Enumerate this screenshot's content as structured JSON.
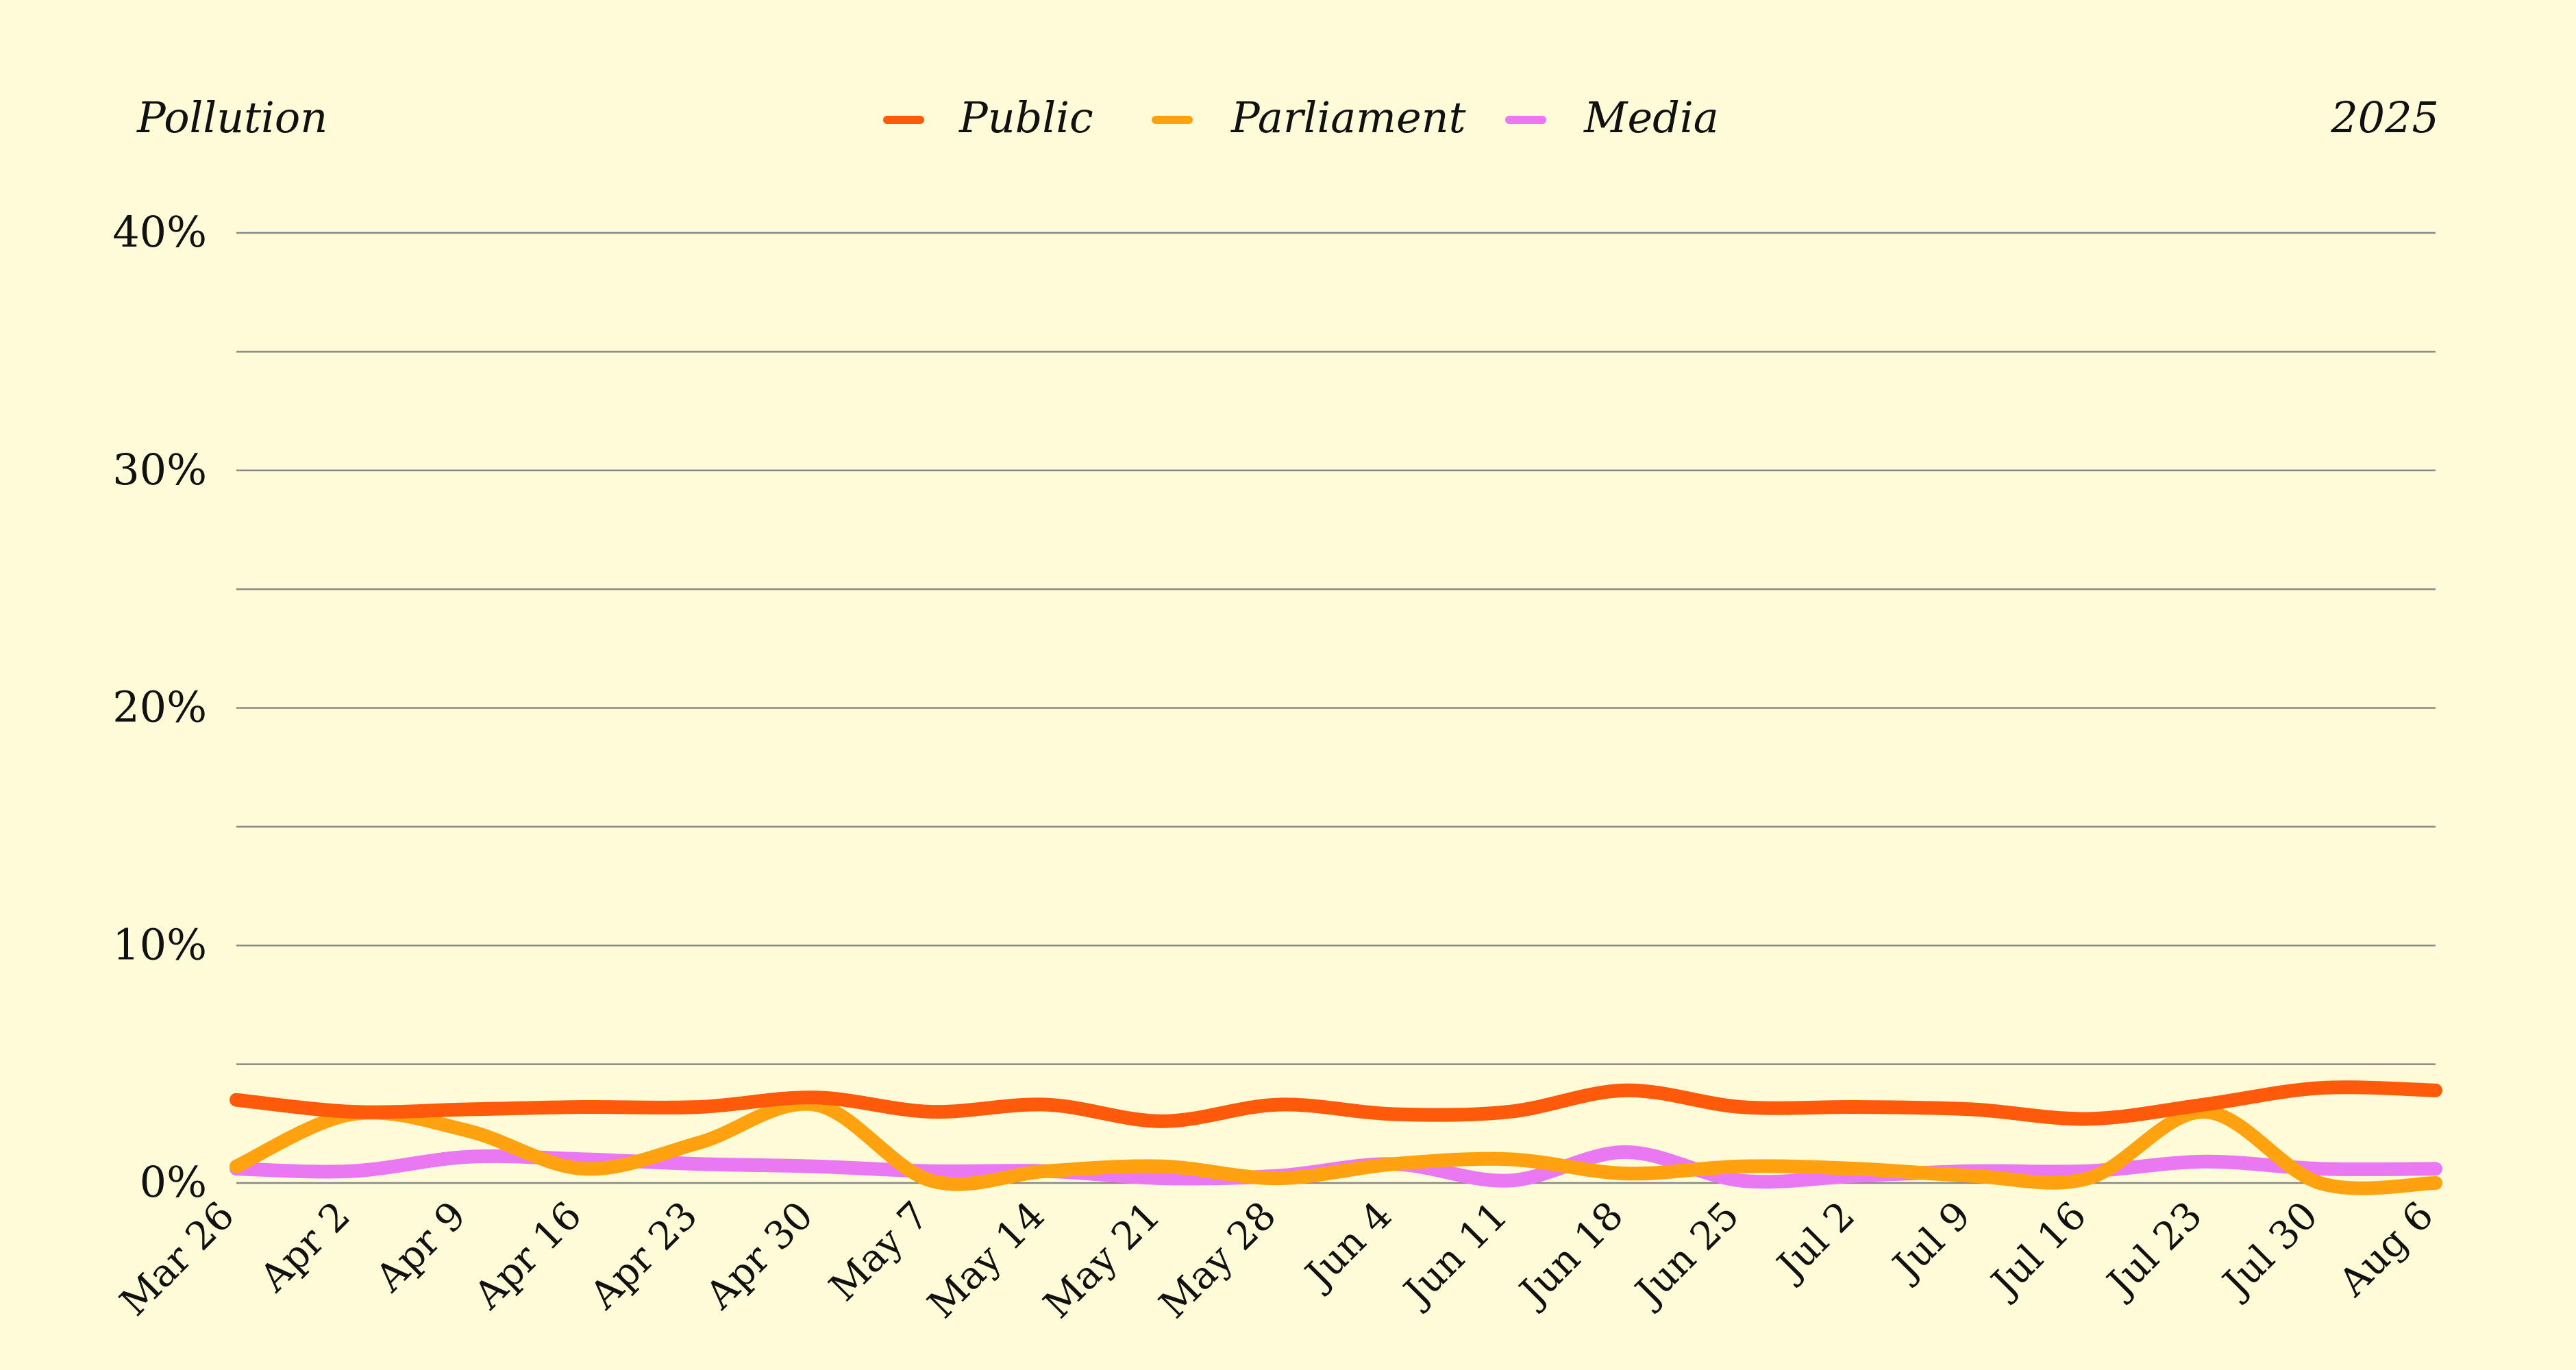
{
  "chart_data": {
    "type": "line",
    "title": "Pollution",
    "year_label": "2025",
    "y_ticks": [
      "0%",
      "10%",
      "20%",
      "30%",
      "40%"
    ],
    "ylim": [
      0,
      40
    ],
    "y_gridlines": [
      0,
      5,
      10,
      15,
      20,
      25,
      30,
      35,
      40
    ],
    "categories": [
      "Mar 26",
      "Apr 2",
      "Apr 9",
      "Apr 16",
      "Apr 23",
      "Apr 30",
      "May 7",
      "May 14",
      "May 21",
      "May 28",
      "Jun 4",
      "Jun 11",
      "Jun 18",
      "Jun 25",
      "Jul 2",
      "Jul 9",
      "Jul 16",
      "Jul 23",
      "Jul 30",
      "Aug 6"
    ],
    "legend_position": "top-center",
    "grid": true,
    "series": [
      {
        "name": "Public",
        "color": "#ff5a0a",
        "values": [
          3.5,
          3.0,
          3.1,
          3.2,
          3.2,
          3.6,
          3.0,
          3.3,
          2.6,
          3.3,
          2.9,
          3.0,
          3.9,
          3.2,
          3.2,
          3.1,
          2.7,
          3.3,
          4.0,
          3.9
        ]
      },
      {
        "name": "Parliament",
        "color": "#ffa20f",
        "values": [
          0.7,
          2.9,
          2.2,
          0.6,
          1.7,
          3.3,
          0.1,
          0.5,
          0.7,
          0.2,
          0.8,
          1.0,
          0.4,
          0.7,
          0.6,
          0.3,
          0.2,
          3.0,
          0.0,
          0.0
        ]
      },
      {
        "name": "Media",
        "color": "#ea78f2",
        "values": [
          0.6,
          0.5,
          1.1,
          1.0,
          0.8,
          0.7,
          0.5,
          0.5,
          0.2,
          0.3,
          0.8,
          0.1,
          1.3,
          0.1,
          0.3,
          0.5,
          0.5,
          0.9,
          0.6,
          0.6
        ]
      }
    ]
  }
}
